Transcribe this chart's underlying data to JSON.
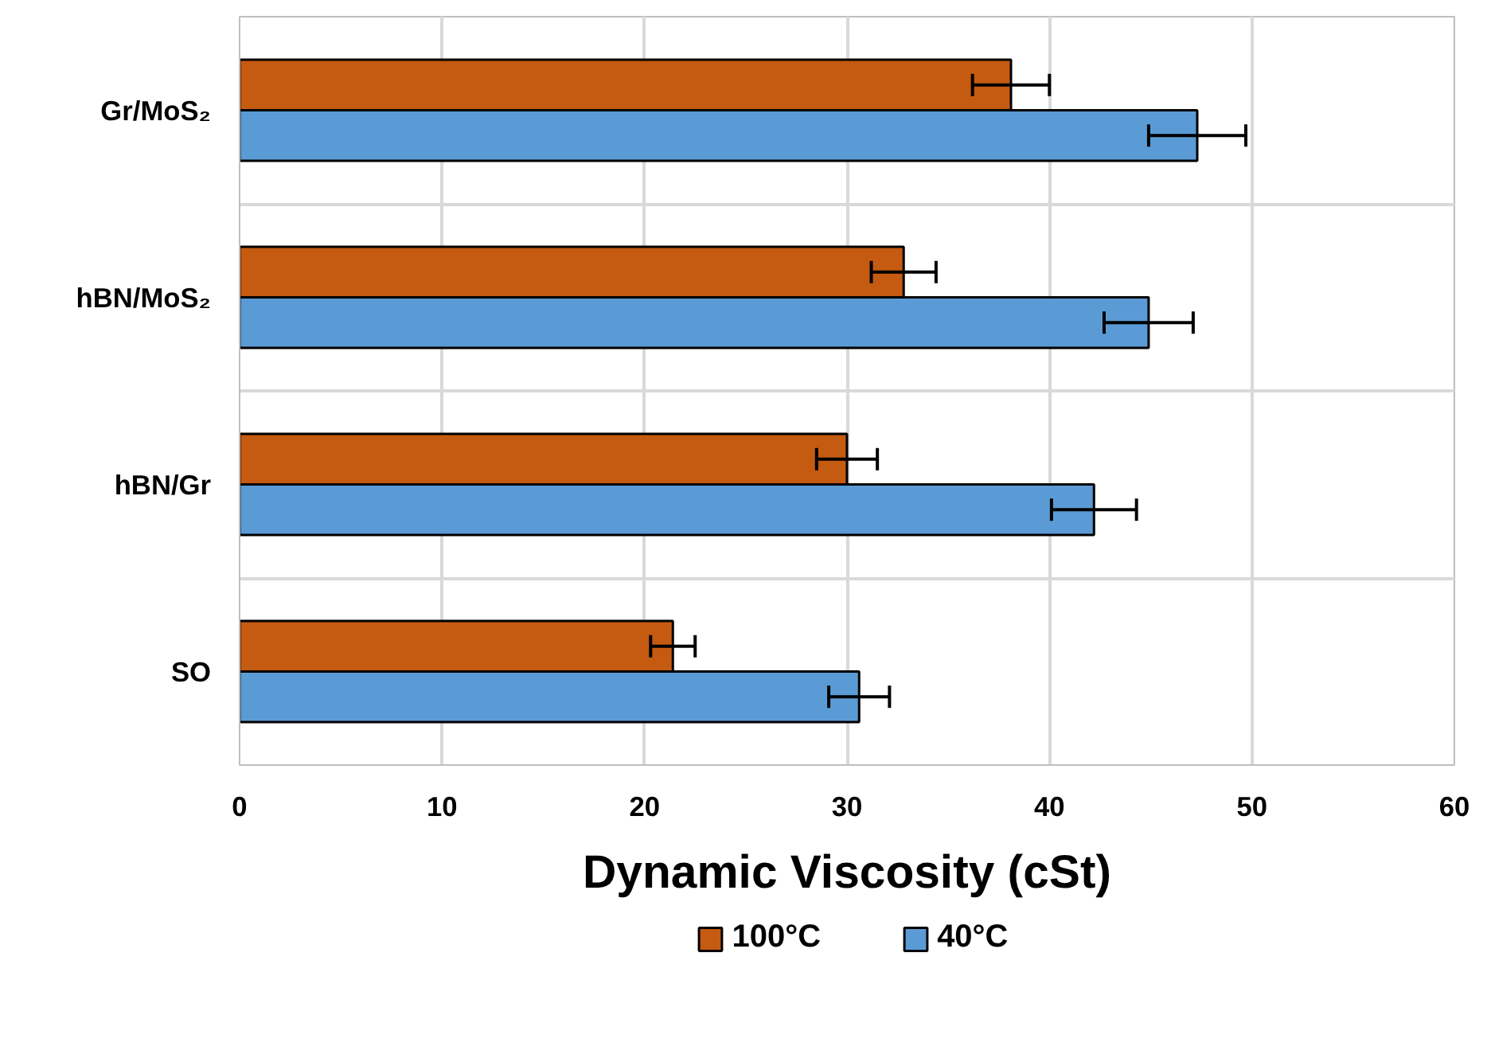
{
  "chart_data": {
    "type": "bar",
    "orientation": "horizontal",
    "xlabel": "Dynamic Viscosity (cSt)",
    "categories": [
      "Gr/MoS₂",
      "hBN/MoS₂",
      "hBN/Gr",
      "SO"
    ],
    "series": [
      {
        "name": "100°C",
        "color": "#c55a11",
        "values": [
          38.1,
          32.8,
          30.0,
          21.4
        ],
        "errors": [
          1.9,
          1.6,
          1.5,
          1.1
        ]
      },
      {
        "name": "40°C",
        "color": "#5b9bd5",
        "values": [
          47.3,
          44.9,
          42.2,
          30.6
        ],
        "errors": [
          2.4,
          2.2,
          2.1,
          1.5
        ]
      }
    ],
    "xlim": [
      0,
      60
    ],
    "xticks": [
      0,
      10,
      20,
      30,
      40,
      50,
      60
    ],
    "grid": true,
    "legend": "bottom"
  }
}
